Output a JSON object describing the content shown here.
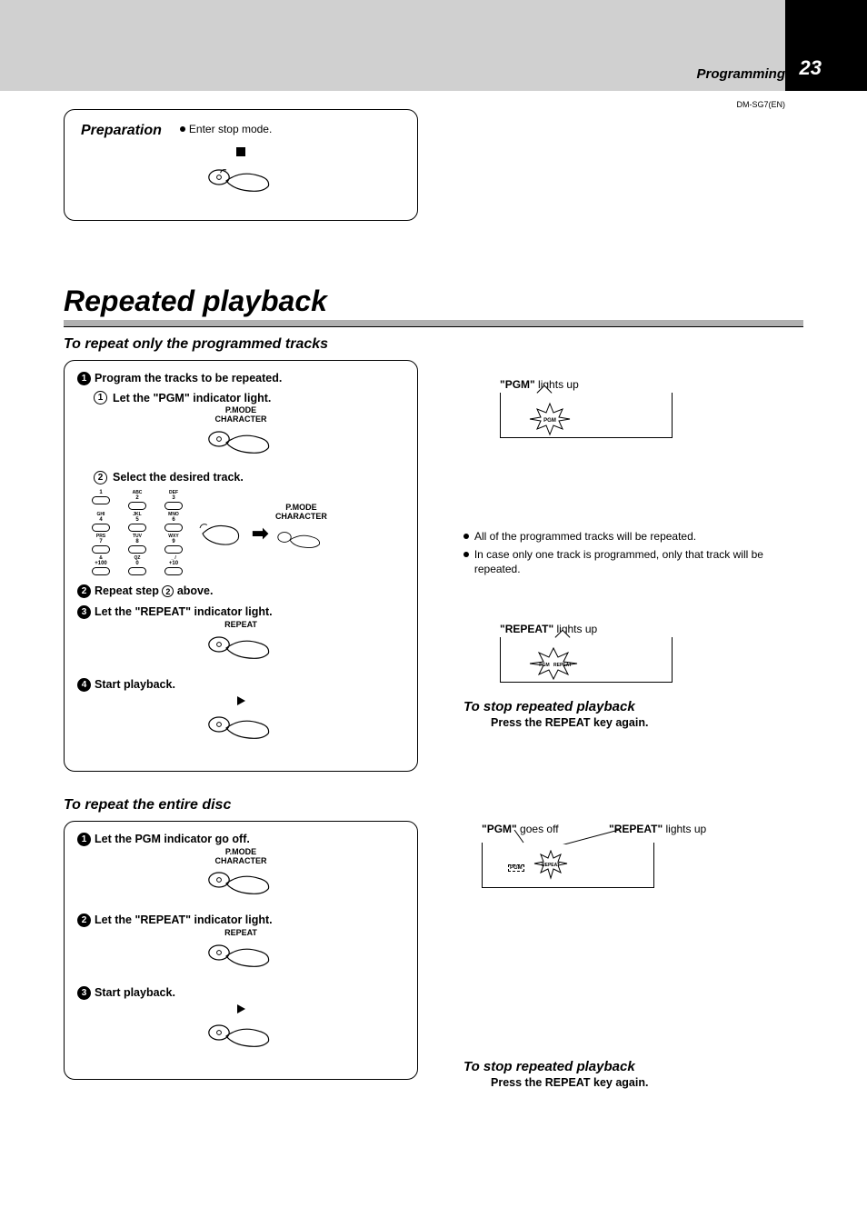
{
  "header": {
    "section": "Programming",
    "page_number": "23",
    "doc_code": "DM-SG7(EN)"
  },
  "preparation": {
    "title": "Preparation",
    "bullet": "Enter stop mode."
  },
  "main_title": "Repeated playback",
  "section1": {
    "title": "To repeat only the programmed tracks",
    "step1": {
      "label": "Program the tracks to be repeated.",
      "sub1": "Let the \"PGM\" indicator light.",
      "button1_line1": "P.MODE",
      "button1_line2": "CHARACTER",
      "sub2": "Select the desired track.",
      "button2_line1": "P.MODE",
      "button2_line2": "CHARACTER"
    },
    "keypad": {
      "r1": [
        {
          "n": "1",
          "t": ""
        },
        {
          "n": "2",
          "t": "ABC"
        },
        {
          "n": "3",
          "t": "DEF"
        }
      ],
      "r2": [
        {
          "n": "4",
          "t": "GHI"
        },
        {
          "n": "5",
          "t": "JKL"
        },
        {
          "n": "6",
          "t": "MNO"
        }
      ],
      "r3": [
        {
          "n": "7",
          "t": "PRS"
        },
        {
          "n": "8",
          "t": "TUV"
        },
        {
          "n": "9",
          "t": "WXY"
        }
      ],
      "r4": [
        {
          "n": "+100",
          "t": "&"
        },
        {
          "n": "0",
          "t": "QZ"
        },
        {
          "n": "+10",
          "t": "_ /"
        }
      ]
    },
    "step2": "Repeat step ② above.",
    "step3": {
      "label": "Let the \"REPEAT\" indicator light.",
      "button": "REPEAT"
    },
    "step4": "Start playback.",
    "right": {
      "pgm_lights": {
        "prefix": "\"PGM\"",
        "suffix": " lights up",
        "badge": "PGM"
      },
      "note1": "All of the programmed tracks will be repeated.",
      "note2": "In case only one track is programmed, only that track will be repeated.",
      "repeat_lights": {
        "prefix": "\"REPEAT\"",
        "suffix": " lights up",
        "badge1": "PGM",
        "badge2": "REPEAT"
      },
      "stop_title": "To stop repeated playback",
      "stop_text": "Press the REPEAT key again."
    }
  },
  "section2": {
    "title": "To repeat the entire disc",
    "step1": {
      "label": "Let the PGM indicator go off.",
      "button_line1": "P.MODE",
      "button_line2": "CHARACTER"
    },
    "step2": {
      "label": "Let the \"REPEAT\" indicator light.",
      "button": "REPEAT"
    },
    "step3": "Start playback.",
    "right": {
      "pgm_off": {
        "prefix": "\"PGM\"",
        "suffix": " goes off"
      },
      "repeat_on": {
        "prefix": "\"REPEAT\"",
        "suffix": " lights up"
      },
      "badge_pgm": "PGM",
      "badge_repeat": "REPEAT",
      "stop_title": "To stop repeated playback",
      "stop_text": "Press the REPEAT key again."
    }
  },
  "colors": {
    "background": "#d0d0d0",
    "page_bg": "#ffffff",
    "text": "#000000",
    "underline_fill": "#b0b0b0"
  }
}
